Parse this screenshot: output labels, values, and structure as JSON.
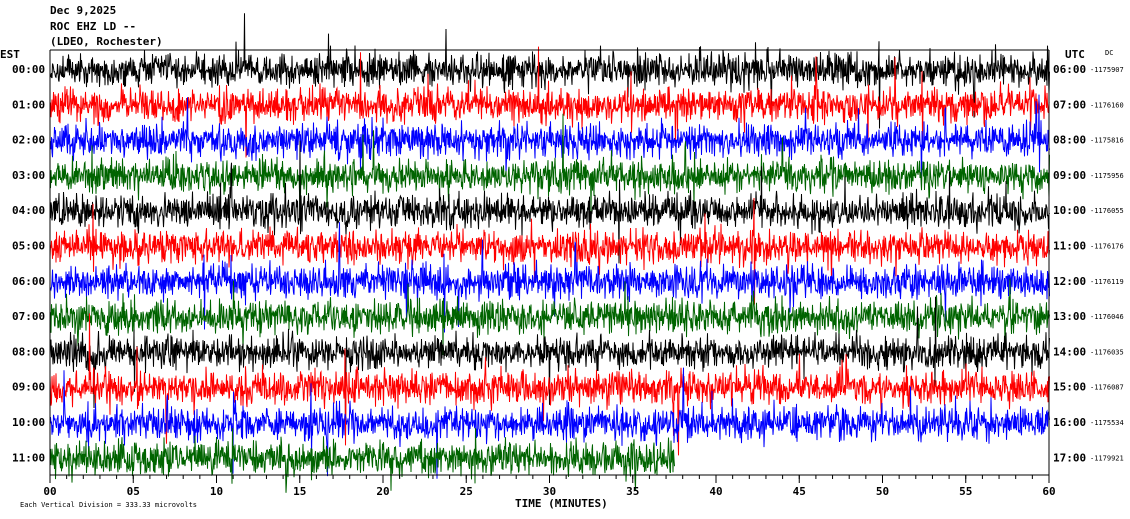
{
  "header": {
    "lines": [
      "Dec 9,2025",
      "ROC EHZ LD --",
      "(LDEO, Rochester)"
    ]
  },
  "left_axis_title": "EST",
  "right_axis_title": "UTC",
  "dc_title": "DC",
  "rows": [
    {
      "est": "00:00",
      "utc": "06:00",
      "dc": "-1175907",
      "color": "#000000"
    },
    {
      "est": "01:00",
      "utc": "07:00",
      "dc": "-1176160",
      "color": "#ff0000"
    },
    {
      "est": "02:00",
      "utc": "08:00",
      "dc": "-1175816",
      "color": "#0000ff"
    },
    {
      "est": "03:00",
      "utc": "09:00",
      "dc": "-1175956",
      "color": "#006400"
    },
    {
      "est": "04:00",
      "utc": "10:00",
      "dc": "-1176055",
      "color": "#000000"
    },
    {
      "est": "05:00",
      "utc": "11:00",
      "dc": "-1176176",
      "color": "#ff0000"
    },
    {
      "est": "06:00",
      "utc": "12:00",
      "dc": "-1176119",
      "color": "#0000ff"
    },
    {
      "est": "07:00",
      "utc": "13:00",
      "dc": "-1176046",
      "color": "#006400"
    },
    {
      "est": "08:00",
      "utc": "14:00",
      "dc": "-1176035",
      "color": "#000000"
    },
    {
      "est": "09:00",
      "utc": "15:00",
      "dc": "-1176087",
      "color": "#ff0000"
    },
    {
      "est": "10:00",
      "utc": "16:00",
      "dc": "-1175534",
      "color": "#0000ff"
    },
    {
      "est": "11:00",
      "utc": "17:00",
      "dc": "-1179921",
      "color": "#006400"
    }
  ],
  "xlim": [
    0,
    60
  ],
  "xticks": [
    {
      "value": 0,
      "label": "00"
    },
    {
      "value": 5,
      "label": "05"
    },
    10,
    15,
    20,
    25,
    30,
    35,
    40,
    45,
    50,
    55,
    60
  ],
  "xlabel": "TIME (MINUTES)",
  "footnote": "Each Vertical Division =  333.33 microvolts"
}
